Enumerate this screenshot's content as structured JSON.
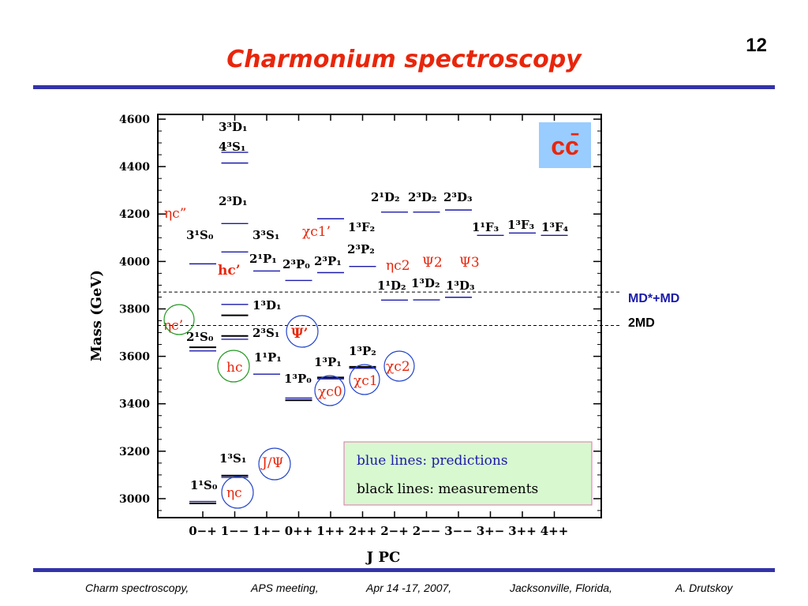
{
  "slide_number": "12",
  "title": "Charmonium spectroscopy",
  "footer": {
    "talk": "Charm spectroscopy,",
    "meeting": "APS meeting,",
    "date": "Apr 14 -17, 2007,",
    "place": "Jacksonville, Florida,",
    "author": "A. Drutskoy"
  },
  "badge": "cc̄",
  "legend": {
    "predictions": "blue lines: predictions",
    "measurements": "black lines: measurements",
    "predictions_color": "#1a1aaa",
    "measurements_color": "#000000",
    "background": "#d8f8d0"
  },
  "thresholds": [
    {
      "mass": 3871,
      "label": "MD*+MD"
    },
    {
      "mass": 3730,
      "label": "2MD"
    }
  ],
  "chart_data": {
    "type": "scatter",
    "xlabel": "J PC",
    "ylabel": "Mass (GeV)",
    "categories": [
      "0−+",
      "1−−",
      "1+−",
      "0++",
      "1++",
      "2++",
      "2−+",
      "2−−",
      "3−−",
      "3+−",
      "3++",
      "4++"
    ],
    "yticks": [
      "3000",
      "3200",
      "3400",
      "3600",
      "3800",
      "4000",
      "4200",
      "4400",
      "4600"
    ],
    "ylim": [
      2920,
      4620
    ],
    "grid": false,
    "levels": [
      {
        "jpc": "0−+",
        "mass": 2980,
        "kind": "measured"
      },
      {
        "jpc": "0−+",
        "mass": 2988,
        "kind": "predicted"
      },
      {
        "jpc": "0−+",
        "mass": 3638,
        "kind": "measured"
      },
      {
        "jpc": "0−+",
        "mass": 3623,
        "kind": "predicted"
      },
      {
        "jpc": "0−+",
        "mass": 3990,
        "kind": "predicted"
      },
      {
        "jpc": "1−−",
        "mass": 3097,
        "kind": "measured"
      },
      {
        "jpc": "1−−",
        "mass": 3090,
        "kind": "predicted"
      },
      {
        "jpc": "1−−",
        "mass": 3686,
        "kind": "measured"
      },
      {
        "jpc": "1−−",
        "mass": 3672,
        "kind": "predicted"
      },
      {
        "jpc": "1−−",
        "mass": 3773,
        "kind": "measured"
      },
      {
        "jpc": "1−−",
        "mass": 3819,
        "kind": "predicted"
      },
      {
        "jpc": "1−−",
        "mass": 4040,
        "kind": "predicted"
      },
      {
        "jpc": "1−−",
        "mass": 4160,
        "kind": "predicted"
      },
      {
        "jpc": "1−−",
        "mass": 4415,
        "kind": "predicted"
      },
      {
        "jpc": "1−−",
        "mass": 4460,
        "kind": "predicted"
      },
      {
        "jpc": "1+−",
        "mass": 3525,
        "kind": "predicted"
      },
      {
        "jpc": "1+−",
        "mass": 3960,
        "kind": "predicted"
      },
      {
        "jpc": "0++",
        "mass": 3415,
        "kind": "measured"
      },
      {
        "jpc": "0++",
        "mass": 3424,
        "kind": "predicted"
      },
      {
        "jpc": "0++",
        "mass": 3920,
        "kind": "predicted"
      },
      {
        "jpc": "1++",
        "mass": 3511,
        "kind": "measured"
      },
      {
        "jpc": "1++",
        "mass": 3505,
        "kind": "predicted"
      },
      {
        "jpc": "1++",
        "mass": 3953,
        "kind": "predicted"
      },
      {
        "jpc": "1++",
        "mass": 4180,
        "kind": "predicted"
      },
      {
        "jpc": "2++",
        "mass": 3556,
        "kind": "measured"
      },
      {
        "jpc": "2++",
        "mass": 3550,
        "kind": "predicted"
      },
      {
        "jpc": "2++",
        "mass": 3979,
        "kind": "predicted"
      },
      {
        "jpc": "2−+",
        "mass": 3837,
        "kind": "predicted"
      },
      {
        "jpc": "2−+",
        "mass": 4208,
        "kind": "predicted"
      },
      {
        "jpc": "2−−",
        "mass": 3838,
        "kind": "predicted"
      },
      {
        "jpc": "2−−",
        "mass": 4208,
        "kind": "predicted"
      },
      {
        "jpc": "3−−",
        "mass": 3849,
        "kind": "predicted"
      },
      {
        "jpc": "3−−",
        "mass": 4217,
        "kind": "predicted"
      },
      {
        "jpc": "3+−",
        "mass": 4110,
        "kind": "predicted"
      },
      {
        "jpc": "3++",
        "mass": 4120,
        "kind": "predicted"
      },
      {
        "jpc": "4++",
        "mass": 4110,
        "kind": "predicted"
      }
    ]
  },
  "state_labels": [
    "3³D₁",
    "4³S₁",
    "2³D₁",
    "3¹S₀",
    "3³S₁",
    "2¹D₂",
    "2³D₂",
    "2³D₃",
    "1³F₂",
    "1¹F₃",
    "1³F₃",
    "1³F₄",
    "2¹P₁",
    "2³P₀",
    "2³P₁",
    "2³P₂",
    "1¹D₂",
    "1³D₂",
    "1³D₃",
    "1³D₁",
    "2¹S₀",
    "2³S₁",
    "1¹P₁",
    "1³P₁",
    "1³P₂",
    "1³P₀",
    "1³S₁",
    "1¹S₀"
  ],
  "particle_names": [
    "ηc”",
    "χc1’",
    "hc’",
    "ηc2",
    "Ψ2",
    "Ψ3",
    "ηc’",
    "Ψ’",
    "hc",
    "χc2",
    "χc1",
    "χc0",
    "J/Ψ",
    "ηc"
  ],
  "colors": {
    "title": "#e8260c",
    "rule": "#3333aa",
    "particle": "#e8260c",
    "circle_blue": "#2244cc",
    "circle_green": "#229922",
    "badge_bg": "#99ccff",
    "threshold_label": "#1a1aaa"
  }
}
